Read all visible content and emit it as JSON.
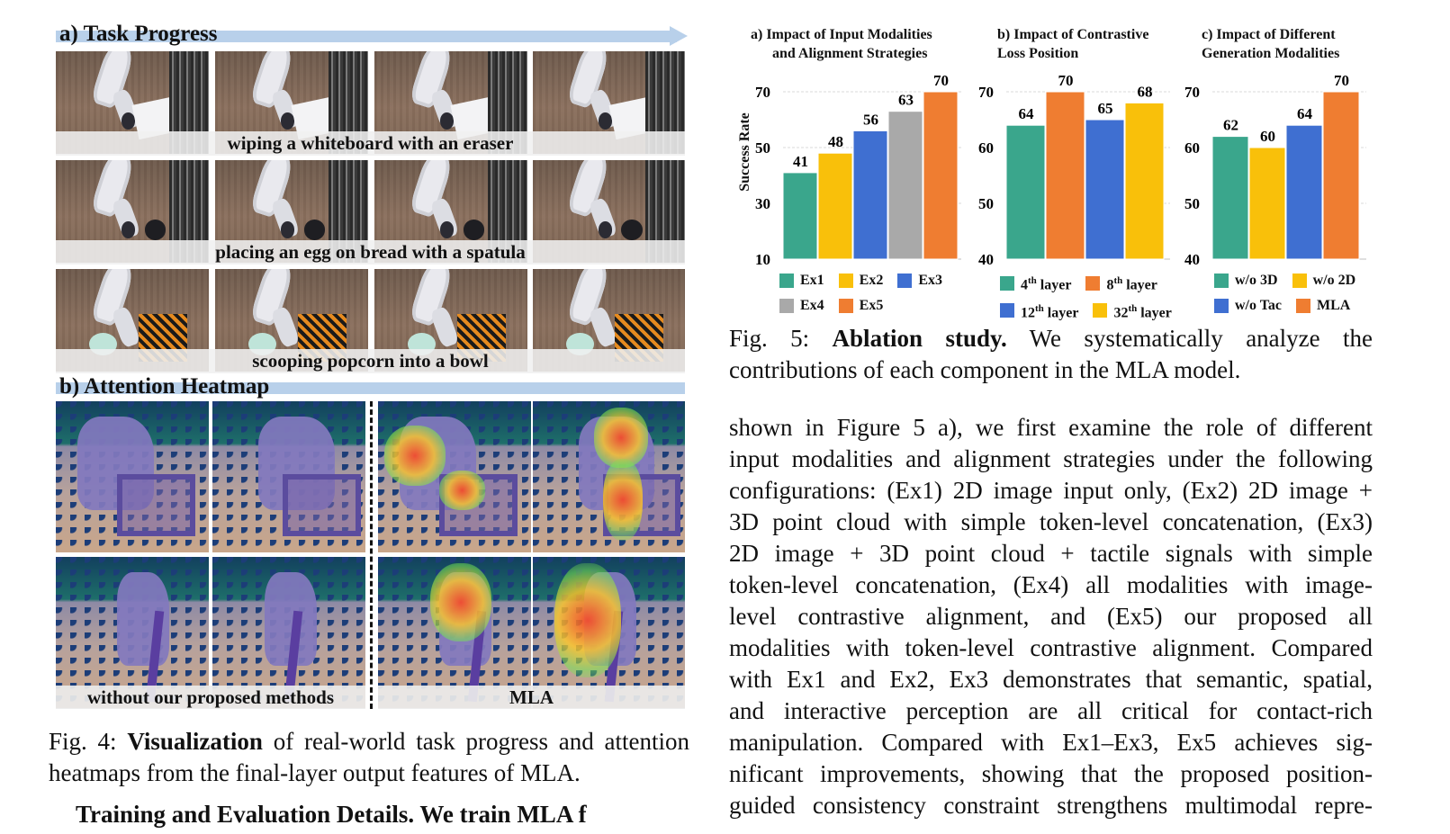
{
  "left_figure": {
    "task_progress_title": "a) Task Progress",
    "attention_title": "b) Attention Heatmap",
    "tasks": [
      {
        "caption": "wiping a whiteboard with an eraser"
      },
      {
        "caption": "placing an egg on bread with a spatula"
      },
      {
        "caption": "scooping popcorn into a bowl"
      }
    ],
    "heatmap_captions": {
      "left": "without our proposed methods",
      "right": "MLA"
    },
    "caption": {
      "prefix": "Fig. 4:",
      "bold": "Visualization",
      "rest": "of real-world task progress and attention heatmaps from the final-layer output features of MLA."
    },
    "next_paragraph_fragment": "Training and Evaluation Details. We train MLA f"
  },
  "right_figure": {
    "charts": [
      {
        "title_line1": "a)  Impact of Input Modalities",
        "title_line2": "and Alignment Strategies",
        "ylabel": "Success Rate",
        "legend": [
          {
            "label": "Ex1",
            "color": "#3aa68c"
          },
          {
            "label": "Ex2",
            "color": "#f9c00a"
          },
          {
            "label": "Ex3",
            "color": "#3f6fd1"
          },
          {
            "label": "Ex4",
            "color": "#a9a9a9"
          },
          {
            "label": "Ex5",
            "color": "#ef7d31"
          }
        ]
      },
      {
        "title_line1": "b) Impact of Contrastive",
        "title_line2": "Loss Position",
        "legend": [
          {
            "label": "4",
            "sup": "th",
            "suffix": "layer",
            "color": "#3aa68c"
          },
          {
            "label": "8",
            "sup": "th",
            "suffix": "layer",
            "color": "#ef7d31"
          },
          {
            "label": "12",
            "sup": "th",
            "suffix": "layer",
            "color": "#3f6fd1"
          },
          {
            "label": "32",
            "sup": "th",
            "suffix": "layer",
            "color": "#f9c00a"
          }
        ]
      },
      {
        "title_line1": "c) Impact of Different",
        "title_line2": "Generation Modalities",
        "legend": [
          {
            "label": "w/o 3D",
            "color": "#3aa68c"
          },
          {
            "label": "w/o 2D",
            "color": "#f9c00a"
          },
          {
            "label": "w/o Tac",
            "color": "#3f6fd1"
          },
          {
            "label": "MLA",
            "color": "#ef7d31"
          }
        ]
      }
    ],
    "caption": {
      "prefix": "Fig. 5:",
      "bold": "Ablation study.",
      "rest": "We systematically analyze the contributions of each component in the MLA model."
    }
  },
  "chart_data": [
    {
      "type": "bar",
      "title": "a)  Impact of Input Modalities and Alignment Strategies",
      "ylabel": "Success Rate",
      "categories": [
        "Ex1",
        "Ex2",
        "Ex3",
        "Ex4",
        "Ex5"
      ],
      "values": [
        41,
        48,
        56,
        63,
        70
      ],
      "colors": [
        "#3aa68c",
        "#f9c00a",
        "#3f6fd1",
        "#a9a9a9",
        "#ef7d31"
      ],
      "yticks": [
        10,
        30,
        50,
        70
      ],
      "ylim": [
        10,
        70
      ],
      "grid": true,
      "legend_position": "bottom"
    },
    {
      "type": "bar",
      "title": "b) Impact of Contrastive Loss Position",
      "categories": [
        "4th layer",
        "8th layer",
        "12th layer",
        "32th layer"
      ],
      "values": [
        64,
        70,
        65,
        68
      ],
      "colors": [
        "#3aa68c",
        "#ef7d31",
        "#3f6fd1",
        "#f9c00a"
      ],
      "yticks": [
        40,
        50,
        60,
        70
      ],
      "ylim": [
        40,
        70
      ],
      "grid": true,
      "legend_position": "bottom"
    },
    {
      "type": "bar",
      "title": "c) Impact of Different Generation Modalities",
      "categories": [
        "w/o 3D",
        "w/o 2D",
        "w/o Tac",
        "MLA"
      ],
      "values": [
        62,
        60,
        64,
        70
      ],
      "colors": [
        "#3aa68c",
        "#f9c00a",
        "#3f6fd1",
        "#ef7d31"
      ],
      "yticks": [
        40,
        50,
        60,
        70
      ],
      "ylim": [
        40,
        70
      ],
      "grid": true,
      "legend_position": "bottom"
    }
  ],
  "body_lines": [
    "shown in Figure 5 a), we first examine the role of different",
    "input modalities and alignment strategies under the following",
    "configurations: (Ex1) 2D image input only, (Ex2) 2D image +",
    "3D point cloud with simple token-level concatenation, (Ex3)",
    "2D image + 3D point cloud + tactile signals with simple",
    "token-level concatenation, (Ex4) all modalities with image-",
    "level contrastive alignment, and (Ex5) our proposed all",
    "modalities with token-level contrastive alignment. Compared",
    "with Ex1 and Ex2, Ex3 demonstrates that semantic, spatial,",
    "and interactive perception are all critical for contact-rich",
    "manipulation. Compared with Ex1–Ex3, Ex5 achieves sig-",
    "nificant improvements, showing that the proposed position-",
    "guided consistency constraint strengthens multimodal repre-"
  ]
}
